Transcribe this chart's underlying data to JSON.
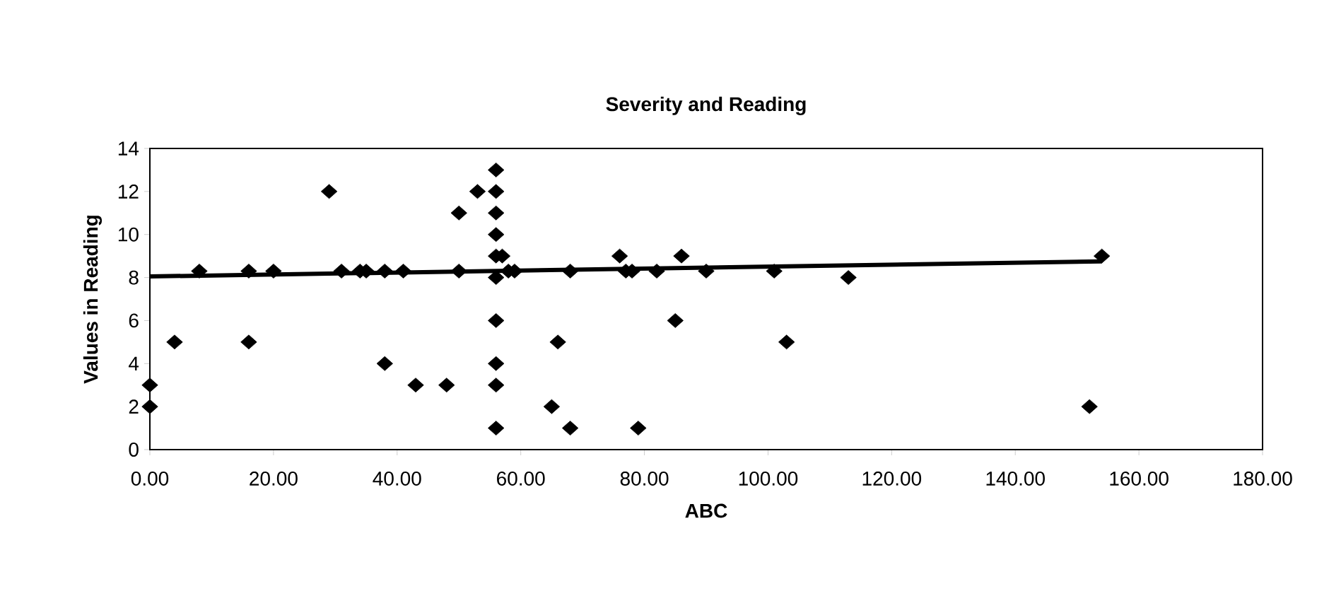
{
  "chart_data": {
    "type": "scatter",
    "title": "Severity and Reading",
    "xlabel": "ABC",
    "ylabel": "Values in Reading",
    "xlim": [
      0,
      180
    ],
    "xticks": [
      {
        "value": 0,
        "label": "0.00"
      },
      {
        "value": 20,
        "label": "20.00"
      },
      {
        "value": 40,
        "label": "40.00"
      },
      {
        "value": 60,
        "label": "60.00"
      },
      {
        "value": 80,
        "label": "80.00"
      },
      {
        "value": 100,
        "label": "100.00"
      },
      {
        "value": 120,
        "label": "120.00"
      },
      {
        "value": 140,
        "label": "140.00"
      },
      {
        "value": 160,
        "label": "160.00"
      },
      {
        "value": 180,
        "label": "180.00"
      }
    ],
    "ylim": [
      0,
      14
    ],
    "yticks": [
      0,
      2,
      4,
      6,
      8,
      10,
      12,
      14
    ],
    "grid": false,
    "marker": "diamond",
    "series": [
      {
        "color": "#000000",
        "x": [
          0,
          0,
          4,
          8,
          16,
          16,
          20,
          29,
          31,
          34,
          35,
          38,
          38,
          41,
          43,
          48,
          50,
          50,
          53,
          56,
          56,
          56,
          56,
          56,
          56,
          56,
          56,
          56,
          56,
          57,
          58,
          59,
          65,
          66,
          68,
          68,
          76,
          77,
          78,
          79,
          82,
          85,
          86,
          90,
          101,
          103,
          113,
          152,
          154
        ],
        "values": [
          3,
          2,
          5,
          8.3,
          8.3,
          5,
          8.3,
          12,
          8.3,
          8.3,
          8.3,
          8.3,
          4,
          8.3,
          3,
          3,
          11,
          8.3,
          12,
          13,
          12,
          11,
          10,
          9,
          8,
          6,
          4,
          3,
          1,
          9,
          8.3,
          8.3,
          2,
          5,
          8.3,
          1,
          9,
          8.3,
          8.3,
          1,
          8.3,
          6,
          9,
          8.3,
          8.3,
          5,
          8,
          2,
          9
        ]
      },
      {
        "type": "line",
        "color": "#000000",
        "marker": "none",
        "x": [
          0,
          154
        ],
        "values": [
          8.05,
          8.75
        ]
      }
    ]
  }
}
